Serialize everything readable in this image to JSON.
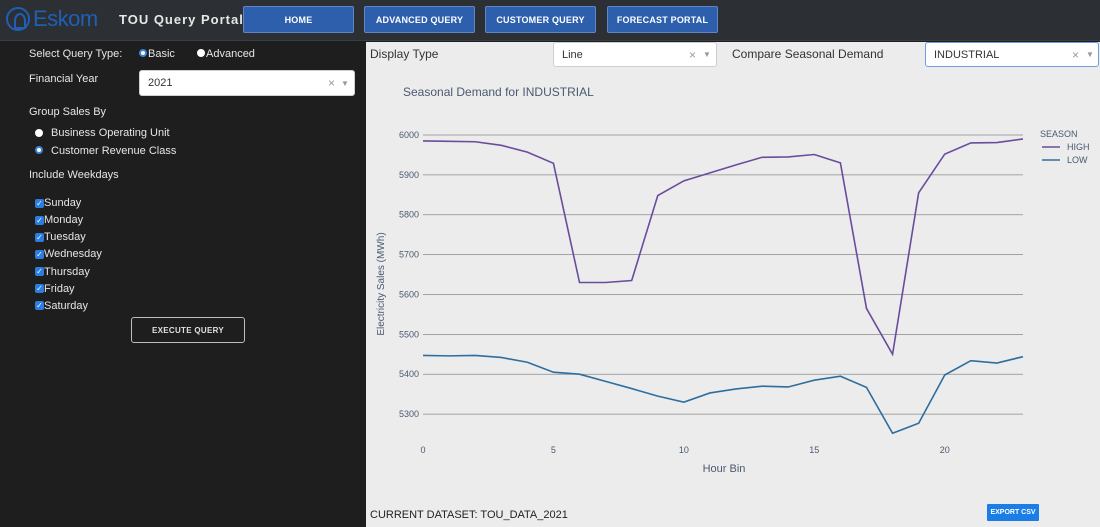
{
  "header": {
    "logo_text": "Eskom",
    "app_title": "TOU Query Portal",
    "nav": [
      {
        "label": "HOME"
      },
      {
        "label": "ADVANCED QUERY"
      },
      {
        "label": "CUSTOMER QUERY"
      },
      {
        "label": "FORECAST PORTAL"
      }
    ]
  },
  "left": {
    "query_type_label": "Select Query Type:",
    "query_type_options": [
      {
        "label": "Basic",
        "selected": true
      },
      {
        "label": "Advanced",
        "selected": false
      }
    ],
    "financial_year_label": "Financial Year",
    "financial_year_value": "2021",
    "group_by_label": "Group Sales By",
    "group_by_options": [
      {
        "label": "Business Operating Unit",
        "selected": false
      },
      {
        "label": "Customer Revenue Class",
        "selected": true
      }
    ],
    "weekdays_label": "Include Weekdays",
    "weekdays": [
      {
        "label": "Sunday",
        "checked": true
      },
      {
        "label": "Monday",
        "checked": true
      },
      {
        "label": "Tuesday",
        "checked": true
      },
      {
        "label": "Wednesday",
        "checked": true
      },
      {
        "label": "Thursday",
        "checked": true
      },
      {
        "label": "Friday",
        "checked": true
      },
      {
        "label": "Saturday",
        "checked": true
      }
    ],
    "execute_label": "EXECUTE QUERY"
  },
  "right": {
    "display_type_label": "Display Type",
    "display_type_value": "Line",
    "compare_label": "Compare Seasonal Demand",
    "compare_value": "INDUSTRIAL",
    "dataset_text": "CURRENT DATASET: TOU_DATA_2021",
    "export_label": "EXPORT CSV"
  },
  "colors": {
    "high": "#6a4c9c",
    "low": "#2e6e9e",
    "nav_button": "#2d5fad",
    "export_button": "#1a7ee6"
  },
  "chart_data": {
    "type": "line",
    "title": "Seasonal Demand for INDUSTRIAL",
    "xlabel": "Hour Bin",
    "ylabel": "Electricity Sales (MWh)",
    "legend_title": "SEASON",
    "legend_position": "top-right",
    "xlim": [
      0,
      23
    ],
    "ylim": [
      5230,
      6030
    ],
    "x_ticks": [
      0,
      5,
      10,
      15,
      20
    ],
    "y_ticks": [
      5300,
      5400,
      5500,
      5600,
      5700,
      5800,
      5900,
      6000
    ],
    "x": [
      0,
      1,
      2,
      3,
      4,
      5,
      6,
      7,
      8,
      9,
      10,
      11,
      12,
      13,
      14,
      15,
      16,
      17,
      18,
      19,
      20,
      21,
      22,
      23
    ],
    "series": [
      {
        "name": "HIGH",
        "values": [
          5985,
          5984,
          5983,
          5974,
          5957,
          5929,
          5630,
          5630,
          5635,
          5848,
          5885,
          5905,
          5925,
          5944,
          5945,
          5951,
          5930,
          5565,
          5450,
          5855,
          5952,
          5980,
          5981,
          5990
        ]
      },
      {
        "name": "LOW",
        "values": [
          5447,
          5446,
          5447,
          5442,
          5430,
          5405,
          5400,
          5382,
          5364,
          5345,
          5330,
          5353,
          5363,
          5370,
          5368,
          5385,
          5395,
          5367,
          5252,
          5277,
          5398,
          5434,
          5428,
          5444
        ]
      }
    ]
  }
}
